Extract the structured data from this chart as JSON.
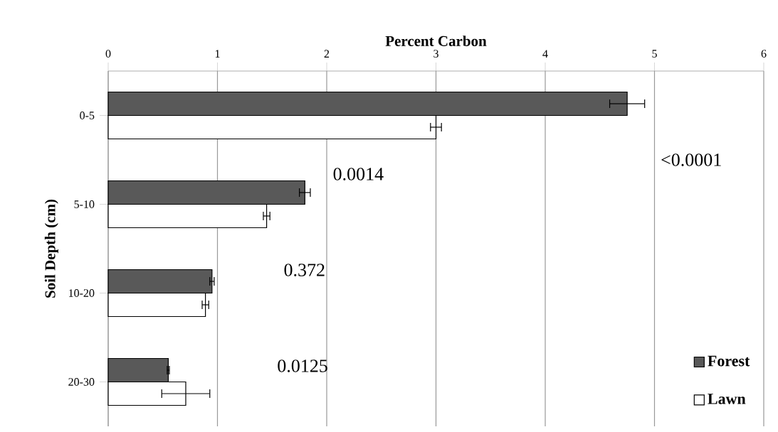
{
  "chart_data": {
    "type": "bar",
    "orientation": "horizontal",
    "xlabel": "Percent Carbon",
    "ylabel": "Soil Depth (cm)",
    "categories": [
      "0-5",
      "5-10",
      "10-20",
      "20-30"
    ],
    "series": [
      {
        "name": "Forest",
        "color": "#595959",
        "values": [
          4.75,
          1.8,
          0.95,
          0.55
        ],
        "errors": [
          0.16,
          0.05,
          0.02,
          0.01
        ]
      },
      {
        "name": "Lawn",
        "color": "#ffffff",
        "values": [
          3.0,
          1.45,
          0.89,
          0.71
        ],
        "errors": [
          0.05,
          0.03,
          0.03,
          0.22
        ]
      }
    ],
    "xlim": [
      0,
      6
    ],
    "xticks": [
      0,
      1,
      2,
      3,
      4,
      5,
      6
    ],
    "grid": "x",
    "legend": "bottom right",
    "annotations": [
      "<0.0001",
      "0.0014",
      "0.372",
      "0.0125"
    ]
  }
}
